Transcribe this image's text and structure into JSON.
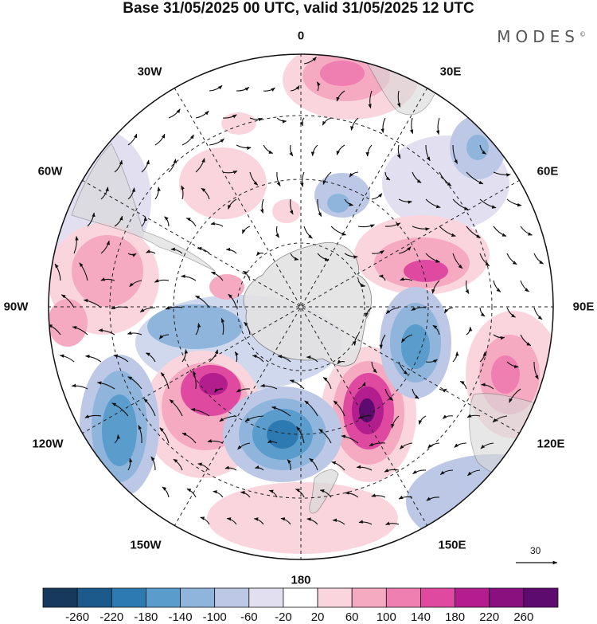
{
  "title": "Base 31/05/2025 00 UTC, valid 31/05/2025 12 UTC",
  "brand": "MODES",
  "brand_mark": "©",
  "longitude_labels": {
    "lon_0": "0",
    "lon_30e": "30E",
    "lon_60e": "60E",
    "lon_90e": "90E",
    "lon_120e": "120E",
    "lon_150e": "150E",
    "lon_180": "180",
    "lon_150w": "150W",
    "lon_120w": "120W",
    "lon_90w": "90W",
    "lon_60w": "60W",
    "lon_30w": "30W"
  },
  "vector_scale_label": "30",
  "colorbar": {
    "ticks": [
      "-260",
      "-220",
      "-180",
      "-140",
      "-100",
      "-60",
      "-20",
      "20",
      "60",
      "100",
      "140",
      "180",
      "220",
      "260"
    ],
    "colors": [
      "#173a5c",
      "#1b5a8a",
      "#2d7ab3",
      "#5a9ccc",
      "#8fb5dc",
      "#bcc8e6",
      "#e2e0f0",
      "#ffffff",
      "#fad5de",
      "#f5aac2",
      "#ee7fb0",
      "#e049a0",
      "#b41d8e",
      "#8a0f7f",
      "#5e0b70"
    ]
  }
}
